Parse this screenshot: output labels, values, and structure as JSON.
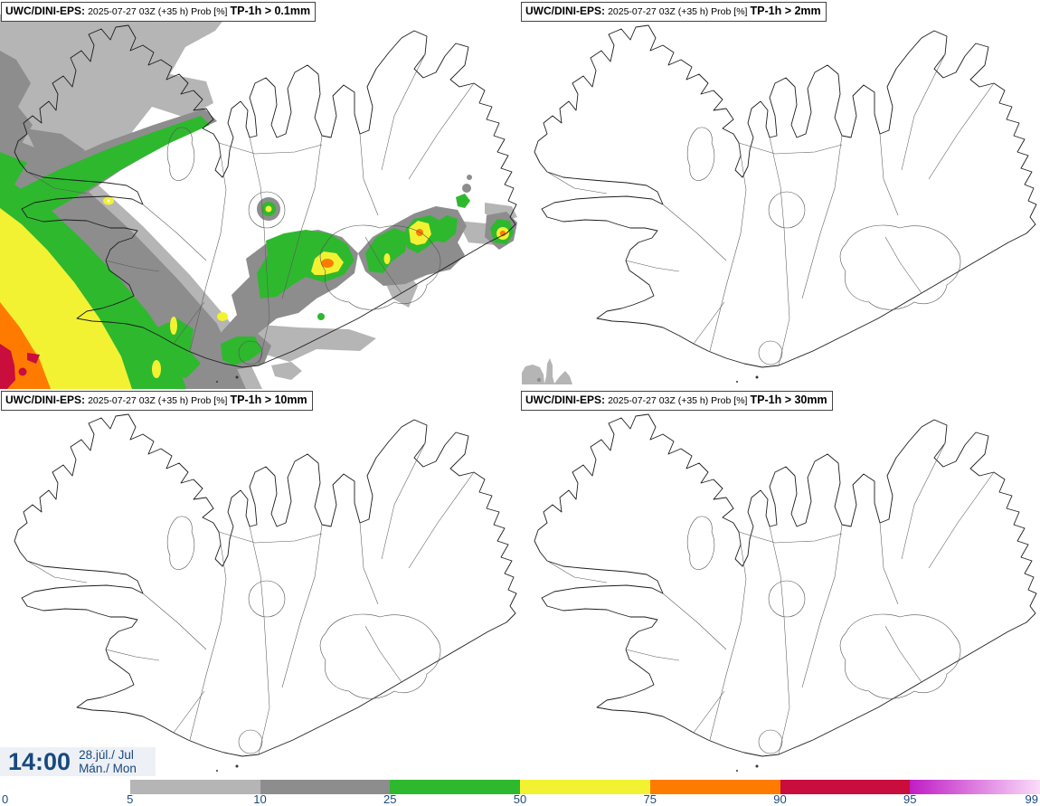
{
  "panels": [
    {
      "model": "UWC/DINI-EPS:",
      "meta": "2025-07-27 03Z (+35 h) Prob [%]",
      "threshold": "TP-1h > 0.1mm"
    },
    {
      "model": "UWC/DINI-EPS:",
      "meta": "2025-07-27 03Z (+35 h) Prob [%]",
      "threshold": "TP-1h > 2mm"
    },
    {
      "model": "UWC/DINI-EPS:",
      "meta": "2025-07-27 03Z (+35 h) Prob [%]",
      "threshold": "TP-1h > 10mm"
    },
    {
      "model": "UWC/DINI-EPS:",
      "meta": "2025-07-27 03Z (+35 h) Prob [%]",
      "threshold": "TP-1h > 30mm"
    }
  ],
  "time_box": {
    "time": "14:00",
    "date": "28.júl./ Jul",
    "day": "Mán./ Mon",
    "text_color": "#17497e",
    "background": "#edf0f5"
  },
  "colorbar": {
    "ticks": [
      "0",
      "5",
      "10",
      "25",
      "50",
      "75",
      "90",
      "95",
      "99"
    ],
    "segment_colors": [
      "#ffffff",
      "#b5b5b5",
      "#8d8d8d",
      "#2eb82e",
      "#f2f232",
      "#ff7b00",
      "#c90d3d",
      "gradient"
    ],
    "gradient": {
      "from": "#c01dc4",
      "to": "#fadcfa"
    },
    "label_color": "#1b4a7e"
  },
  "palette": {
    "light_gray": "#b5b5b5",
    "dark_gray": "#8d8d8d",
    "green": "#2eb82e",
    "yellow": "#f2f232",
    "orange": "#ff7b00",
    "crimson": "#c90d3d",
    "magenta": "#c01dc4",
    "pink": "#fadcfa"
  }
}
